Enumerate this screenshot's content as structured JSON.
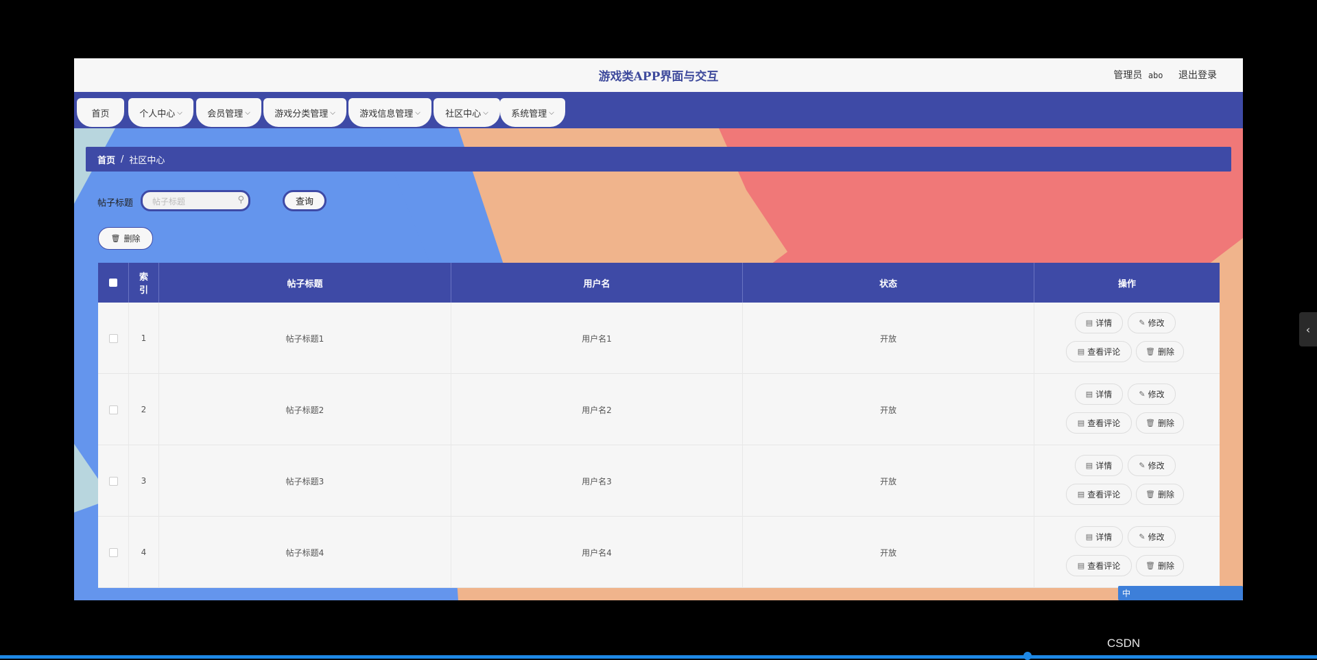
{
  "app": {
    "title": "游戏类APP界面与交互",
    "user_role": "管理员",
    "user_name": "abo",
    "logout": "退出登录"
  },
  "nav": [
    {
      "label": "首页",
      "has_dropdown": false
    },
    {
      "label": "个人中心",
      "has_dropdown": true
    },
    {
      "label": "会员管理",
      "has_dropdown": true
    },
    {
      "label": "游戏分类管理",
      "has_dropdown": true
    },
    {
      "label": "游戏信息管理",
      "has_dropdown": true
    },
    {
      "label": "社区中心",
      "has_dropdown": true
    },
    {
      "label": "系统管理",
      "has_dropdown": true
    }
  ],
  "breadcrumb": {
    "home": "首页",
    "separator": "/",
    "current": "社区中心"
  },
  "search": {
    "label": "帖子标题",
    "placeholder": "帖子标题",
    "value": "",
    "button": "查询"
  },
  "toolbar": {
    "delete_label": "删除"
  },
  "table": {
    "headers": {
      "index": "索引",
      "title": "帖子标题",
      "username": "用户名",
      "status": "状态",
      "actions": "操作"
    },
    "rows": [
      {
        "index": "1",
        "title": "帖子标题1",
        "username": "用户名1",
        "status": "开放"
      },
      {
        "index": "2",
        "title": "帖子标题2",
        "username": "用户名2",
        "status": "开放"
      },
      {
        "index": "3",
        "title": "帖子标题3",
        "username": "用户名3",
        "status": "开放"
      },
      {
        "index": "4",
        "title": "帖子标题4",
        "username": "用户名4",
        "status": "开放"
      }
    ],
    "actions": {
      "detail": "详情",
      "edit": "修改",
      "comments": "查看评论",
      "delete": "删除"
    }
  },
  "overlay": {
    "watermark": "CSDN",
    "ime_label": "中"
  },
  "colors": {
    "accent": "#3e4aa6",
    "blue": "#6495ed",
    "peach": "#f0b48c",
    "coral": "#f07878"
  }
}
